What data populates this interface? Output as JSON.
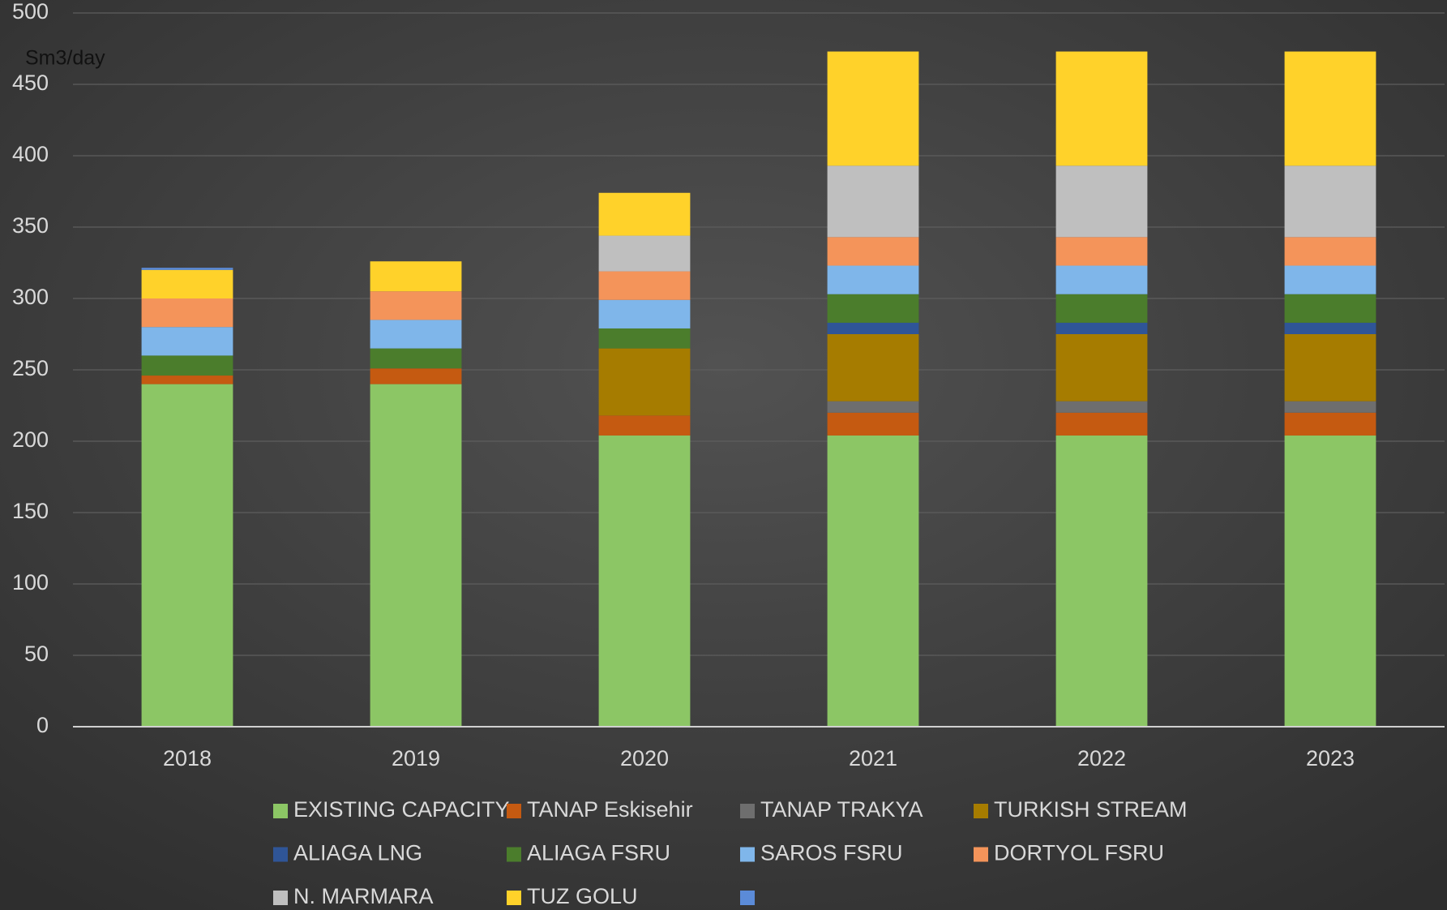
{
  "chart_data": {
    "type": "bar",
    "stacked": true,
    "y_label": "Sm3/day",
    "categories": [
      "2018",
      "2019",
      "2020",
      "2021",
      "2022",
      "2023"
    ],
    "ylim": [
      0,
      500
    ],
    "yticks": [
      0,
      50,
      100,
      150,
      200,
      250,
      300,
      350,
      400,
      450,
      500
    ],
    "grid": true,
    "legend": "bottom",
    "series": [
      {
        "name": "EXISTING CAPACITY",
        "color": "#8cc665",
        "values": [
          240,
          240,
          204,
          204,
          204,
          204
        ]
      },
      {
        "name": "TANAP Eskisehir",
        "color": "#c55a11",
        "values": [
          6,
          11,
          14,
          16,
          16,
          16
        ]
      },
      {
        "name": "TANAP TRAKYA",
        "color": "#6e6e6e",
        "values": [
          0,
          0,
          0,
          8,
          8,
          8
        ]
      },
      {
        "name": "TURKISH STREAM",
        "color": "#a67c00",
        "values": [
          0,
          0,
          47,
          47,
          47,
          47
        ]
      },
      {
        "name": "ALIAGA LNG",
        "color": "#2f5597",
        "values": [
          0,
          0,
          0,
          8,
          8,
          8
        ]
      },
      {
        "name": "ALIAGA FSRU",
        "color": "#4b7d2c",
        "values": [
          14,
          14,
          14,
          20,
          20,
          20
        ]
      },
      {
        "name": "SAROS FSRU",
        "color": "#7fb6ea",
        "values": [
          20,
          20,
          20,
          20,
          20,
          20
        ]
      },
      {
        "name": "DORTYOL FSRU",
        "color": "#f4945a",
        "values": [
          20,
          20,
          20,
          20,
          20,
          20
        ]
      },
      {
        "name": "N. MARMARA",
        "color": "#bfbfbf",
        "values": [
          0,
          0,
          25,
          50,
          50,
          50
        ]
      },
      {
        "name": "TUZ GOLU",
        "color": "#ffd22a",
        "values": [
          20,
          21,
          30,
          80,
          80,
          80
        ]
      },
      {
        "color": "#5b8bd8",
        "values": [
          1.5,
          0,
          0,
          0,
          0,
          0
        ]
      }
    ]
  }
}
